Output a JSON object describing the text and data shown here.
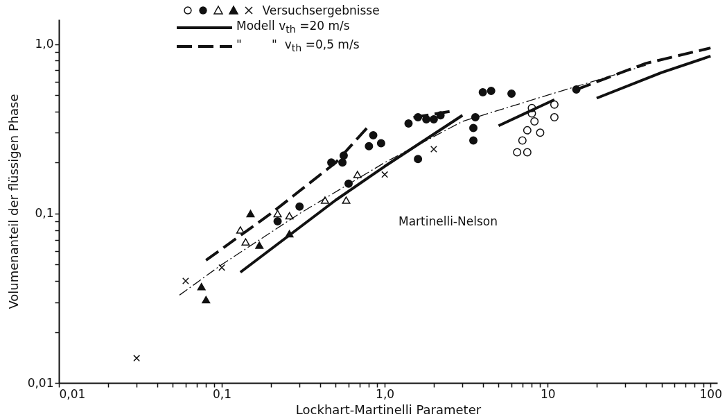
{
  "chart_data": {
    "type": "scatter",
    "xlabel": "Lockhart-Martinelli Parameter",
    "ylabel": "Volumenanteil der flüssigen Phase",
    "log": "xy",
    "grid": false,
    "legend": "top",
    "xlim": [
      0.01,
      110
    ],
    "ylim": [
      0.01,
      1.4
    ],
    "xticks": [
      {
        "value": 0.01,
        "label": "0,01"
      },
      {
        "value": 0.02,
        "label": null
      },
      {
        "value": 0.03,
        "label": null
      },
      {
        "value": 0.04,
        "label": null
      },
      {
        "value": 0.05,
        "label": null
      },
      {
        "value": 0.06,
        "label": null
      },
      {
        "value": 0.07,
        "label": null
      },
      {
        "value": 0.08,
        "label": null
      },
      {
        "value": 0.09,
        "label": null
      },
      {
        "value": 0.1,
        "label": "0,1"
      },
      {
        "value": 0.2,
        "label": null
      },
      {
        "value": 0.3,
        "label": null
      },
      {
        "value": 0.4,
        "label": null
      },
      {
        "value": 0.5,
        "label": null
      },
      {
        "value": 0.6,
        "label": null
      },
      {
        "value": 0.7,
        "label": null
      },
      {
        "value": 0.8,
        "label": null
      },
      {
        "value": 0.9,
        "label": null
      },
      {
        "value": 1,
        "label": "1,0"
      },
      {
        "value": 2,
        "label": null
      },
      {
        "value": 3,
        "label": null
      },
      {
        "value": 4,
        "label": null
      },
      {
        "value": 5,
        "label": null
      },
      {
        "value": 6,
        "label": null
      },
      {
        "value": 7,
        "label": null
      },
      {
        "value": 8,
        "label": null
      },
      {
        "value": 9,
        "label": null
      },
      10,
      {
        "value": 20,
        "label": null
      },
      {
        "value": 30,
        "label": null
      },
      {
        "value": 40,
        "label": null
      },
      {
        "value": 50,
        "label": null
      },
      {
        "value": 60,
        "label": null
      },
      {
        "value": 70,
        "label": null
      },
      {
        "value": 80,
        "label": null
      },
      {
        "value": 90,
        "label": null
      },
      100
    ],
    "yticks": [
      {
        "value": 0.01,
        "label": "0,01"
      },
      {
        "value": 0.02,
        "label": null
      },
      {
        "value": 0.03,
        "label": null
      },
      {
        "value": 0.04,
        "label": null
      },
      {
        "value": 0.05,
        "label": null
      },
      {
        "value": 0.06,
        "label": null
      },
      {
        "value": 0.07,
        "label": null
      },
      {
        "value": 0.08,
        "label": null
      },
      {
        "value": 0.09,
        "label": null
      },
      {
        "value": 0.1,
        "label": "0,1"
      },
      {
        "value": 0.2,
        "label": null
      },
      {
        "value": 0.3,
        "label": null
      },
      {
        "value": 0.4,
        "label": null
      },
      {
        "value": 0.5,
        "label": null
      },
      {
        "value": 0.6,
        "label": null
      },
      {
        "value": 0.7,
        "label": null
      },
      {
        "value": 0.8,
        "label": null
      },
      {
        "value": 0.9,
        "label": null
      },
      {
        "value": 1,
        "label": "1,0"
      }
    ],
    "series": [
      {
        "marker": "circle",
        "color": "#ffffff",
        "x": [
          6.5,
          7,
          7.5,
          7.5,
          8,
          8.3,
          9,
          11,
          11,
          8
        ],
        "values": [
          0.23,
          0.27,
          0.23,
          0.31,
          0.39,
          0.35,
          0.3,
          0.44,
          0.37,
          0.42
        ]
      },
      {
        "marker": "circle",
        "color": "#111111",
        "x": [
          0.22,
          0.3,
          0.47,
          0.55,
          0.56,
          0.6,
          0.8,
          0.85,
          0.95,
          1.4,
          1.6,
          1.6,
          1.8,
          2.0,
          2.2,
          3.5,
          3.5,
          3.6,
          4.0,
          4.5,
          6,
          15
        ],
        "values": [
          0.09,
          0.11,
          0.2,
          0.2,
          0.22,
          0.15,
          0.25,
          0.29,
          0.26,
          0.34,
          0.37,
          0.21,
          0.36,
          0.36,
          0.38,
          0.27,
          0.32,
          0.37,
          0.52,
          0.53,
          0.51,
          0.54
        ]
      },
      {
        "marker": "triangle",
        "color": "#ffffff",
        "x": [
          0.13,
          0.14,
          0.22,
          0.26,
          0.43,
          0.58,
          0.68
        ],
        "values": [
          0.08,
          0.068,
          0.1,
          0.097,
          0.12,
          0.12,
          0.17
        ]
      },
      {
        "marker": "triangle",
        "color": "#111111",
        "x": [
          0.075,
          0.08,
          0.15,
          0.17,
          0.26
        ],
        "values": [
          0.037,
          0.031,
          0.1,
          0.065,
          0.076
        ]
      },
      {
        "marker": "cross",
        "color": "#111111",
        "x": [
          0.03,
          0.06,
          0.1,
          1.0,
          2.0
        ],
        "values": [
          0.014,
          0.04,
          0.048,
          0.17,
          0.24
        ]
      },
      {
        "type": "line",
        "name": "Modell v$_{th}$ =20 m/s",
        "line_style": "solid",
        "color": "#111111",
        "x": [
          0.13,
          0.5,
          1,
          3,
          4,
          5,
          11,
          15,
          20,
          50,
          100
        ],
        "values": [
          0.045,
          0.12,
          0.19,
          0.38,
          null,
          0.33,
          0.47,
          null,
          0.48,
          0.68,
          0.85
        ]
      },
      {
        "type": "line",
        "name": "\"        \"  v$_{th}$ =0,5 m/s",
        "line_style": "dashed",
        "color": "#111111",
        "x": [
          0.08,
          0.2,
          0.5,
          0.8,
          1.2,
          1.5,
          2.5,
          3.5,
          15,
          40,
          100
        ],
        "values": [
          0.053,
          0.1,
          0.2,
          0.33,
          null,
          0.37,
          0.4,
          null,
          0.54,
          0.77,
          0.95
        ]
      },
      {
        "type": "line",
        "line_style": "dotted",
        "color": "#111111",
        "x": [
          0.055,
          0.1,
          0.3,
          1,
          3,
          10,
          40
        ],
        "values": [
          0.033,
          0.05,
          0.1,
          0.2,
          0.35,
          0.5,
          0.75
        ]
      }
    ],
    "annotations": [
      "Versuchsergebnisse",
      "Martinelli-Nelson"
    ]
  }
}
